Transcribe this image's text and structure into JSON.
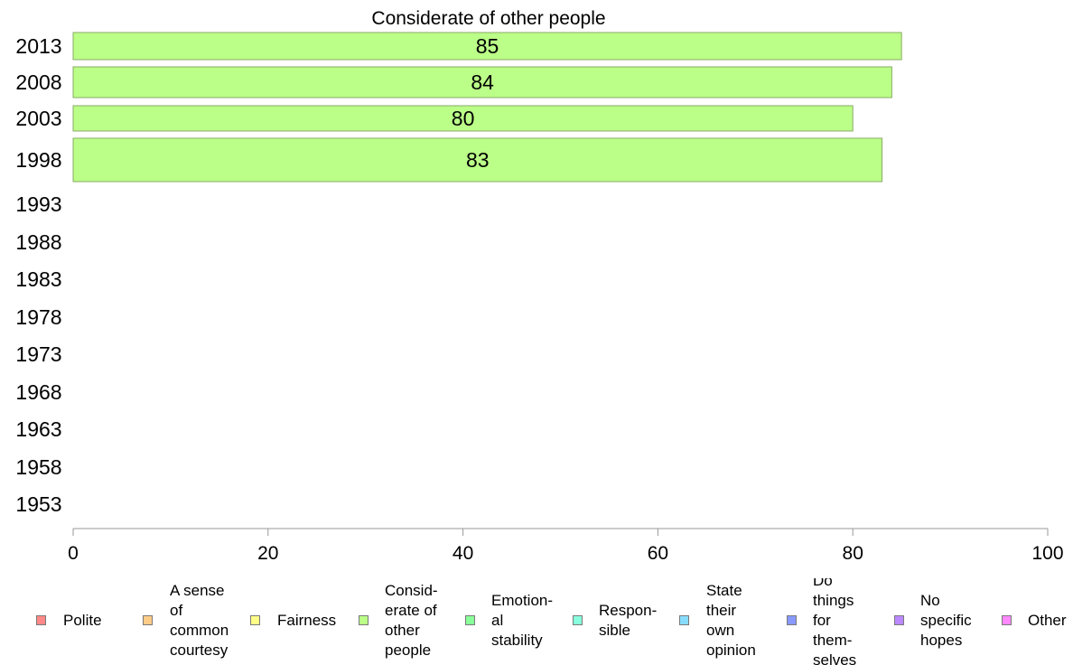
{
  "chart_data": {
    "type": "bar",
    "orientation": "horizontal",
    "title": "Considerate of other people",
    "categories": [
      "2013",
      "2008",
      "2003",
      "1998",
      "1993",
      "1988",
      "1983",
      "1978",
      "1973",
      "1968",
      "1963",
      "1958",
      "1953"
    ],
    "series": [
      {
        "name": "Considerate of other people",
        "values": [
          85,
          84,
          80,
          83,
          null,
          null,
          null,
          null,
          null,
          null,
          null,
          null,
          null
        ]
      }
    ],
    "xlim": [
      0,
      100
    ],
    "xticks": [
      "0",
      "20",
      "40",
      "60",
      "80",
      "100"
    ],
    "xlabel": "",
    "ylabel": "",
    "grid": false,
    "legend_position": "bottom",
    "bar_color": "#bbff88",
    "bar_border_color": "#88aa66"
  },
  "legend": [
    {
      "label": "Polite",
      "color": "#ff8888"
    },
    {
      "label": "A sense\nof\ncommon\ncourtesy",
      "color": "#ffcc88"
    },
    {
      "label": "Fairness",
      "color": "#ffff88"
    },
    {
      "label": "Consid-\nerate of\nother\npeople",
      "color": "#bbff88"
    },
    {
      "label": "Emotion-\nal\nstability",
      "color": "#88ff99"
    },
    {
      "label": "Respon-\nsible",
      "color": "#88ffdd"
    },
    {
      "label": "State\ntheir\nown\nopinion",
      "color": "#88ddff"
    },
    {
      "label": "Do\nthings\nfor\nthem-\nselves",
      "color": "#8899ff"
    },
    {
      "label": "No\nspecific\nhopes",
      "color": "#bb88ff"
    },
    {
      "label": "Other",
      "color": "#ff88ff"
    }
  ]
}
